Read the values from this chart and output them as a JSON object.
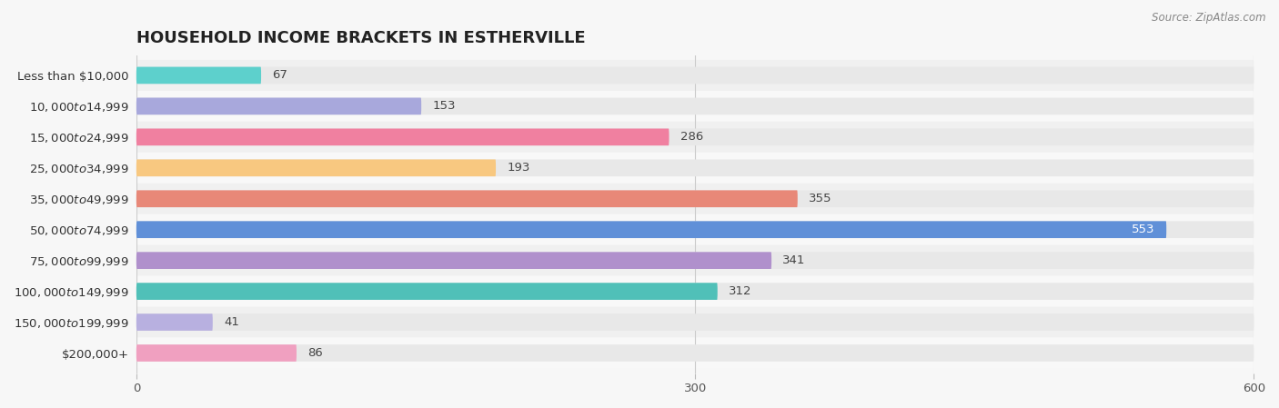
{
  "title": "HOUSEHOLD INCOME BRACKETS IN ESTHERVILLE",
  "source": "Source: ZipAtlas.com",
  "categories": [
    "Less than $10,000",
    "$10,000 to $14,999",
    "$15,000 to $24,999",
    "$25,000 to $34,999",
    "$35,000 to $49,999",
    "$50,000 to $74,999",
    "$75,000 to $99,999",
    "$100,000 to $149,999",
    "$150,000 to $199,999",
    "$200,000+"
  ],
  "values": [
    67,
    153,
    286,
    193,
    355,
    553,
    341,
    312,
    41,
    86
  ],
  "bar_colors": [
    "#5dd0cc",
    "#a8a8dc",
    "#f080a0",
    "#f8c880",
    "#e88878",
    "#6090d8",
    "#b090cc",
    "#50c0b8",
    "#b8b0e0",
    "#f0a0c0"
  ],
  "xlim": [
    0,
    600
  ],
  "xticks": [
    0,
    300,
    600
  ],
  "background_color": "#f7f7f7",
  "bar_bg_color": "#e8e8e8",
  "row_bg_colors": [
    "#f0f0f0",
    "#f8f8f8"
  ],
  "title_fontsize": 13,
  "label_fontsize": 9.5,
  "value_fontsize": 9.5,
  "bar_height": 0.55,
  "figsize": [
    14.06,
    4.49
  ],
  "dpi": 100,
  "value_inside_color_threshold": 500,
  "value_inside_indices": [
    5
  ]
}
